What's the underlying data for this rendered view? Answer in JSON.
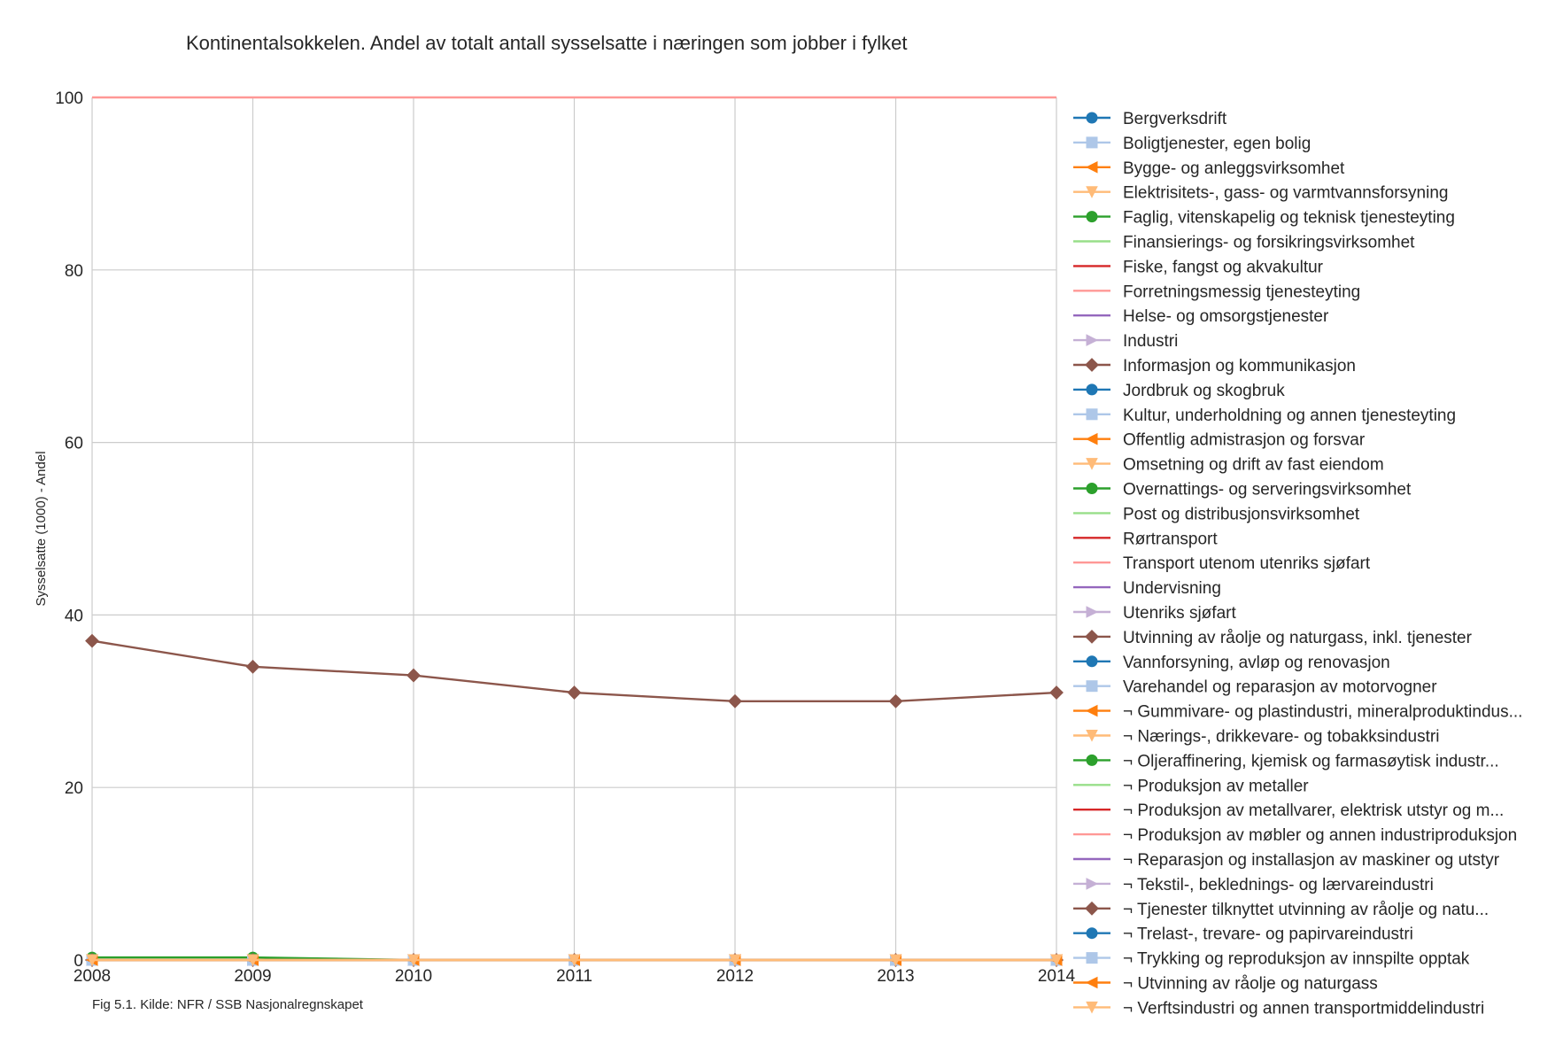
{
  "chart_data": {
    "type": "line",
    "title": "Kontinentalsokkelen. Andel av totalt antall sysselsatte i næringen som jobber i fylket",
    "ylabel": "Sysselsatte (1000) - Andel",
    "xlabel": "",
    "caption": "Fig 5.1. Kilde: NFR / SSB Nasjonalregnskapet",
    "x": [
      2008,
      2009,
      2010,
      2011,
      2012,
      2013,
      2014
    ],
    "x_tick_labels": [
      "2008",
      "2009",
      "2010",
      "2011",
      "2012",
      "2013",
      "2014"
    ],
    "xlim": [
      2008,
      2014
    ],
    "ylim": [
      0,
      100
    ],
    "y_ticks": [
      0,
      20,
      40,
      60,
      80,
      100
    ],
    "y_tick_labels": [
      "0",
      "20",
      "40",
      "60",
      "80",
      "100"
    ],
    "grid": true,
    "legend_position": "right",
    "series": [
      {
        "name": "Bergverksdrift",
        "color": "#1f77b4",
        "marker": "circle",
        "values": [
          0,
          0,
          0,
          0,
          0,
          0,
          0
        ]
      },
      {
        "name": "Boligtjenester, egen bolig",
        "color": "#aec7e8",
        "marker": "square",
        "values": [
          0,
          0,
          0,
          0,
          0,
          0,
          0
        ]
      },
      {
        "name": "Bygge- og anleggsvirksomhet",
        "color": "#ff7f0e",
        "marker": "triangle-left",
        "values": [
          0,
          0,
          0,
          0,
          0,
          0,
          0
        ]
      },
      {
        "name": "Elektrisitets-, gass- og varmtvannsforsyning",
        "color": "#ffbb78",
        "marker": "triangle-down",
        "values": [
          0,
          0,
          0,
          0,
          0,
          0,
          0
        ]
      },
      {
        "name": "Faglig, vitenskapelig og teknisk tjenesteyting",
        "color": "#2ca02c",
        "marker": "circle",
        "values": [
          0.3,
          0.3,
          0,
          0,
          0,
          0,
          0
        ]
      },
      {
        "name": "Finansierings- og forsikringsvirksomhet",
        "color": "#98df8a",
        "marker": "none",
        "values": [
          0,
          0,
          0,
          0,
          0,
          0,
          0
        ]
      },
      {
        "name": "Fiske, fangst og akvakultur",
        "color": "#d62728",
        "marker": "none",
        "values": [
          0,
          0,
          0,
          0,
          0,
          0,
          0
        ]
      },
      {
        "name": "Forretningsmessig tjenesteyting",
        "color": "#ff9896",
        "marker": "none",
        "values": [
          100,
          100,
          100,
          100,
          100,
          100,
          100
        ]
      },
      {
        "name": "Helse- og omsorgstjenester",
        "color": "#9467bd",
        "marker": "none",
        "values": [
          0,
          0,
          0,
          0,
          0,
          0,
          0
        ]
      },
      {
        "name": "Industri",
        "color": "#c5b0d5",
        "marker": "triangle-right",
        "values": [
          0,
          0,
          0,
          0,
          0,
          0,
          0
        ]
      },
      {
        "name": "Informasjon og kommunikasjon",
        "color": "#8c564b",
        "marker": "diamond",
        "values": [
          0,
          0,
          0,
          0,
          0,
          0,
          0
        ]
      },
      {
        "name": "Jordbruk og skogbruk",
        "color": "#1f77b4",
        "marker": "circle",
        "values": [
          0,
          0,
          0,
          0,
          0,
          0,
          0
        ]
      },
      {
        "name": "Kultur, underholdning og annen tjenesteyting",
        "color": "#aec7e8",
        "marker": "square",
        "values": [
          0,
          0,
          0,
          0,
          0,
          0,
          0
        ]
      },
      {
        "name": "Offentlig admistrasjon og forsvar",
        "color": "#ff7f0e",
        "marker": "triangle-left",
        "values": [
          0,
          0,
          0,
          0,
          0,
          0,
          0
        ]
      },
      {
        "name": "Omsetning og drift av fast eiendom",
        "color": "#ffbb78",
        "marker": "triangle-down",
        "values": [
          0,
          0,
          0,
          0,
          0,
          0,
          0
        ]
      },
      {
        "name": "Overnattings- og serveringsvirksomhet",
        "color": "#2ca02c",
        "marker": "circle",
        "values": [
          0,
          0,
          0,
          0,
          0,
          0,
          0
        ]
      },
      {
        "name": "Post og distribusjonsvirksomhet",
        "color": "#98df8a",
        "marker": "none",
        "values": [
          0,
          0,
          0,
          0,
          0,
          0,
          0
        ]
      },
      {
        "name": "Rørtransport",
        "color": "#d62728",
        "marker": "none",
        "values": [
          0,
          0,
          0,
          0,
          0,
          0,
          0
        ]
      },
      {
        "name": "Transport utenom utenriks sjøfart",
        "color": "#ff9896",
        "marker": "none",
        "values": [
          0,
          0,
          0,
          0,
          0,
          0,
          0
        ]
      },
      {
        "name": "Undervisning",
        "color": "#9467bd",
        "marker": "none",
        "values": [
          0,
          0,
          0,
          0,
          0,
          0,
          0
        ]
      },
      {
        "name": "Utenriks sjøfart",
        "color": "#c5b0d5",
        "marker": "triangle-right",
        "values": [
          0,
          0,
          0,
          0,
          0,
          0,
          0
        ]
      },
      {
        "name": "Utvinning av råolje og naturgass, inkl. tjenester",
        "color": "#8c564b",
        "marker": "diamond",
        "values": [
          37,
          34,
          33,
          31,
          30,
          30,
          31
        ]
      },
      {
        "name": "Vannforsyning, avløp og renovasjon",
        "color": "#1f77b4",
        "marker": "circle",
        "values": [
          0,
          0,
          0,
          0,
          0,
          0,
          0
        ]
      },
      {
        "name": "Varehandel og reparasjon av motorvogner",
        "color": "#aec7e8",
        "marker": "square",
        "values": [
          0,
          0,
          0,
          0,
          0,
          0,
          0
        ]
      },
      {
        "name": "¬ Gummivare- og plastindustri, mineralproduktindus...",
        "color": "#ff7f0e",
        "marker": "triangle-left",
        "values": [
          0,
          0,
          0,
          0,
          0,
          0,
          0
        ]
      },
      {
        "name": "¬ Nærings-, drikkevare- og tobakksindustri",
        "color": "#ffbb78",
        "marker": "triangle-down",
        "values": [
          0,
          0,
          0,
          0,
          0,
          0,
          0
        ]
      },
      {
        "name": "¬ Oljeraffinering, kjemisk og farmasøytisk industr...",
        "color": "#2ca02c",
        "marker": "circle",
        "values": [
          0,
          0,
          0,
          0,
          0,
          0,
          0
        ]
      },
      {
        "name": "¬ Produksjon av metaller",
        "color": "#98df8a",
        "marker": "none",
        "values": [
          0,
          0,
          0,
          0,
          0,
          0,
          0
        ]
      },
      {
        "name": "¬ Produksjon av metallvarer, elektrisk utstyr og m...",
        "color": "#d62728",
        "marker": "none",
        "values": [
          0,
          0,
          0,
          0,
          0,
          0,
          0
        ]
      },
      {
        "name": "¬ Produksjon av møbler og annen industriproduksjon",
        "color": "#ff9896",
        "marker": "none",
        "values": [
          0,
          0,
          0,
          0,
          0,
          0,
          0
        ]
      },
      {
        "name": "¬ Reparasjon og installasjon av maskiner og utstyr",
        "color": "#9467bd",
        "marker": "none",
        "values": [
          0,
          0,
          0,
          0,
          0,
          0,
          0
        ]
      },
      {
        "name": "¬ Tekstil-, beklednings- og lærvareindustri",
        "color": "#c5b0d5",
        "marker": "triangle-right",
        "values": [
          0,
          0,
          0,
          0,
          0,
          0,
          0
        ]
      },
      {
        "name": "¬ Tjenester tilknyttet utvinning av råolje og natu...",
        "color": "#8c564b",
        "marker": "diamond",
        "values": [
          0,
          0,
          0,
          0,
          0,
          0,
          0
        ]
      },
      {
        "name": "¬ Trelast-, trevare- og papirvareindustri",
        "color": "#1f77b4",
        "marker": "circle",
        "values": [
          0,
          0,
          0,
          0,
          0,
          0,
          0
        ]
      },
      {
        "name": "¬ Trykking og reproduksjon av innspilte opptak",
        "color": "#aec7e8",
        "marker": "square",
        "values": [
          0,
          0,
          0,
          0,
          0,
          0,
          0
        ]
      },
      {
        "name": "¬ Utvinning av råolje og naturgass",
        "color": "#ff7f0e",
        "marker": "triangle-left",
        "values": [
          0,
          0,
          0,
          0,
          0,
          0,
          0
        ]
      },
      {
        "name": "¬ Verftsindustri og annen transportmiddelindustri",
        "color": "#ffbb78",
        "marker": "triangle-down",
        "values": [
          0,
          0,
          0,
          0,
          0,
          0,
          0
        ]
      }
    ]
  }
}
